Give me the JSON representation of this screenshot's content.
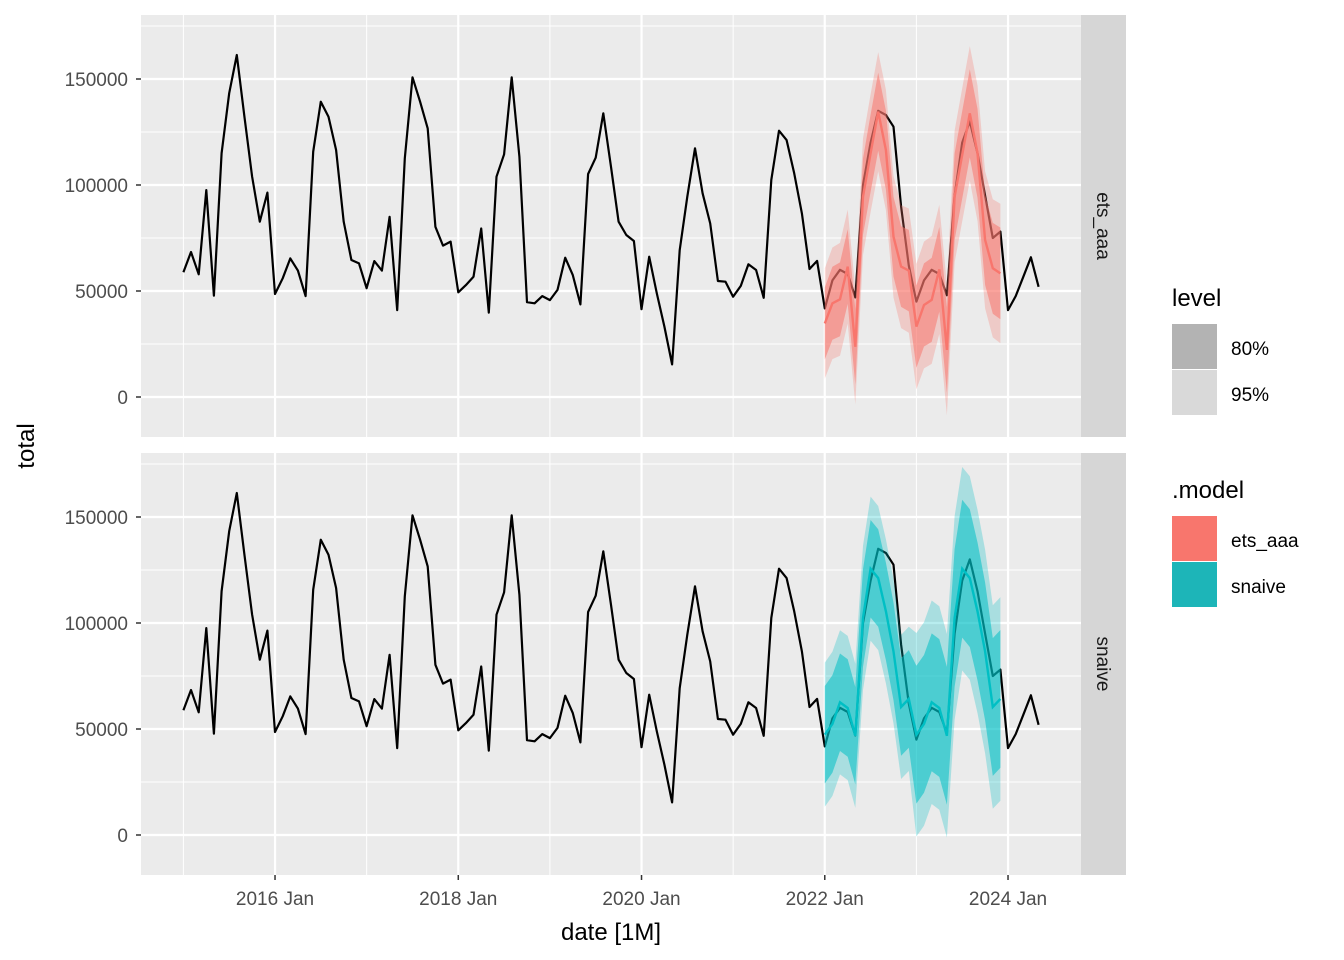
{
  "chart_data": {
    "type": "line",
    "xlabel": "date [1M]",
    "ylabel": "total",
    "x_start": "2015 Jan",
    "x_ticks": [
      "2016 Jan",
      "2018 Jan",
      "2020 Jan",
      "2022 Jan",
      "2024 Jan"
    ],
    "y_ticks": [
      "0",
      "50000",
      "100000",
      "150000"
    ],
    "ylim": [
      -20000,
      180000
    ],
    "grid": true,
    "facets": [
      "ets_aaa",
      "snaive"
    ],
    "actual": [
      58800,
      68400,
      57900,
      97600,
      47800,
      115000,
      143300,
      161300,
      132000,
      104000,
      82700,
      96400,
      48600,
      56000,
      65400,
      59600,
      47600,
      115700,
      139300,
      132200,
      116500,
      82700,
      64600,
      63000,
      51300,
      64100,
      59600,
      85000,
      41000,
      112600,
      150800,
      139300,
      126700,
      80300,
      71400,
      73300,
      49400,
      52800,
      56700,
      79500,
      39800,
      103900,
      114500,
      150800,
      113400,
      44700,
      44200,
      47600,
      45700,
      50500,
      65700,
      57500,
      43700,
      105200,
      112900,
      133800,
      108600,
      82700,
      76400,
      73600,
      41400,
      66200,
      48900,
      33200,
      15400,
      69300,
      94500,
      117300,
      96100,
      81900,
      54700,
      54400,
      47300,
      52400,
      62600,
      59900,
      46800,
      102400,
      125600,
      121200,
      105500,
      86600,
      60400,
      64200,
      41800,
      55000,
      60000,
      58000,
      47000,
      100000,
      120000,
      135000,
      133000,
      127500,
      89800,
      62000,
      45000,
      55000,
      60000,
      58000,
      48000,
      95000,
      120000,
      130000,
      115000,
      95000,
      75000,
      78000,
      41000,
      47600,
      56700,
      65900,
      52000
    ],
    "forecast_start": "2022 Jan",
    "forecasts": [
      {
        "model": "ets_aaa",
        "color": "#F8766D",
        "mean": [
          34700,
          44200,
          46100,
          61500,
          23700,
          94500,
          115000,
          134600,
          116500,
          75600,
          61500,
          59600,
          33200,
          43400,
          45800,
          60200,
          22200,
          94500,
          114200,
          133800,
          115000,
          74100,
          60700,
          58300
        ],
        "halfwidth_80": [
          17000,
          17200,
          17400,
          17600,
          17800,
          18000,
          18200,
          18400,
          18600,
          18800,
          19000,
          19200,
          19400,
          19600,
          19800,
          20000,
          20200,
          20400,
          20600,
          20800,
          21000,
          21200,
          21400,
          21600
        ],
        "halfwidth_95": [
          26000,
          26300,
          26600,
          26900,
          27200,
          27500,
          27800,
          28100,
          28400,
          28700,
          29000,
          29300,
          29600,
          29900,
          30200,
          30500,
          30800,
          31100,
          31400,
          31700,
          32000,
          32300,
          32600,
          32900
        ]
      },
      {
        "model": "snaive",
        "color": "#00BFC4",
        "mean": [
          47300,
          52400,
          62600,
          59900,
          46800,
          102400,
          125600,
          121200,
          105500,
          86600,
          60400,
          64200,
          47300,
          52400,
          62600,
          59900,
          46800,
          102400,
          125600,
          121200,
          105500,
          86600,
          60400,
          64200
        ],
        "halfwidth_80": [
          23000,
          23000,
          23000,
          23000,
          23000,
          23000,
          23000,
          23000,
          23000,
          23000,
          23000,
          23000,
          32500,
          32500,
          32500,
          32500,
          32500,
          32500,
          32500,
          32500,
          32500,
          32500,
          32500,
          32500
        ],
        "halfwidth_95": [
          34000,
          34000,
          34000,
          34000,
          34000,
          34000,
          34000,
          34000,
          34000,
          34000,
          34000,
          34000,
          48000,
          48000,
          48000,
          48000,
          48000,
          48000,
          48000,
          48000,
          48000,
          48000,
          48000,
          48000
        ]
      }
    ],
    "legend": {
      "placement": "right",
      "level_title": "level",
      "levels": [
        "80%",
        "95%"
      ],
      "level_colors": [
        "#b3b3b3",
        "#d9d9d9"
      ],
      "model_title": ".model",
      "models": [
        "ets_aaa",
        "snaive"
      ],
      "model_colors": [
        "#F8766D",
        "#00BFC4"
      ]
    }
  }
}
